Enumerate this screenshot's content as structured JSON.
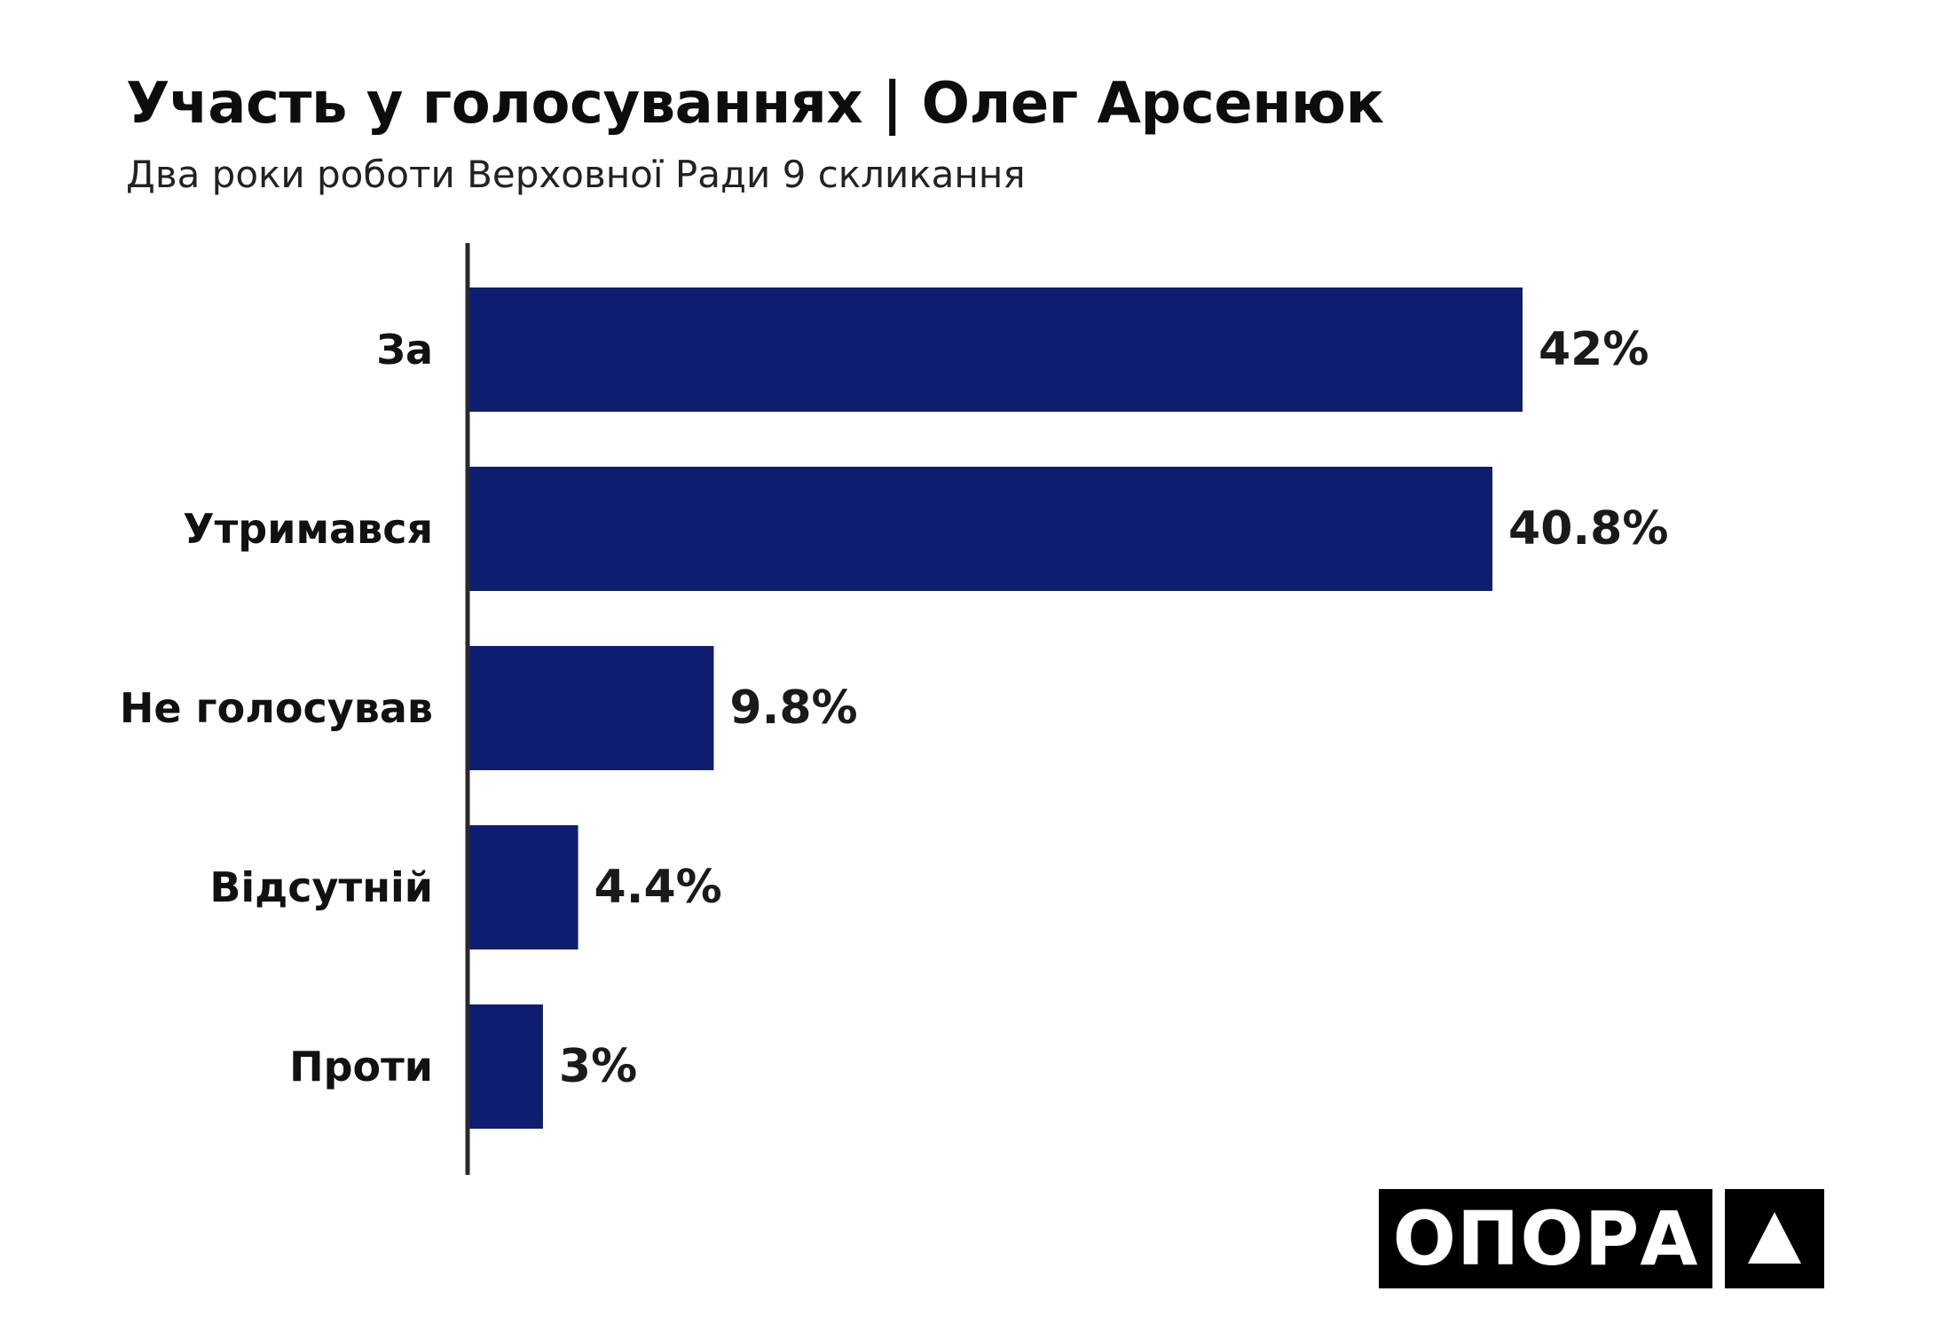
{
  "header": {
    "title": "Участь у голосуваннях | Олег Арсенюк",
    "subtitle": "Два роки роботи Верховної Ради 9 скликання"
  },
  "chart_data": {
    "type": "bar",
    "orientation": "horizontal",
    "categories": [
      "За",
      "Утримався",
      "Не голосував",
      "Відсутній",
      "Проти"
    ],
    "values": [
      42,
      40.8,
      9.8,
      4.4,
      3
    ],
    "data_labels": [
      "42%",
      "40.8%",
      "9.8%",
      "4.4%",
      "3%"
    ],
    "unit": "%",
    "xlim": [
      0,
      42
    ],
    "grid": false,
    "bar_color": "#0f1d70"
  },
  "logo": {
    "word": "ОПОРА",
    "mark_icon": "triangle-icon"
  }
}
